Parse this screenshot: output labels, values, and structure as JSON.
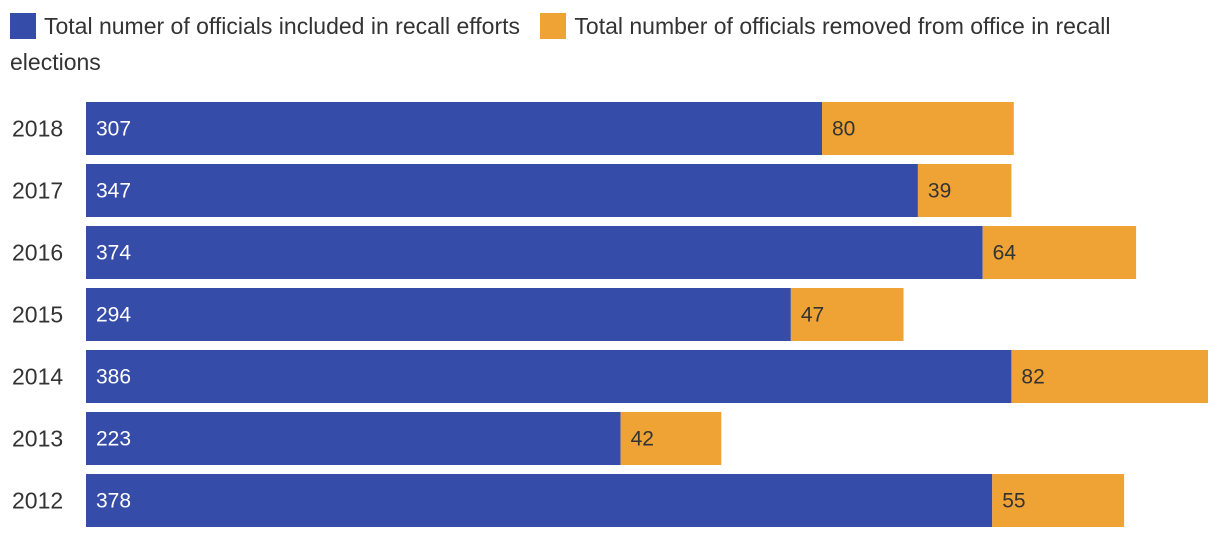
{
  "chart_data": {
    "type": "bar",
    "orientation": "horizontal",
    "stacked": true,
    "categories": [
      "2018",
      "2017",
      "2016",
      "2015",
      "2014",
      "2013",
      "2012"
    ],
    "series": [
      {
        "name": "Total numer of officials included in recall efforts",
        "color": "#354ca9",
        "label_color": "#ffffff",
        "values": [
          307,
          347,
          374,
          294,
          386,
          223,
          378
        ]
      },
      {
        "name": "Total number of officials removed from office in recall elections",
        "color": "#f0a335",
        "label_color": "#333333",
        "values": [
          80,
          39,
          64,
          47,
          82,
          42,
          55
        ]
      }
    ],
    "xlim": [
      0,
      468
    ],
    "grid": false,
    "legend_position": "top-left"
  }
}
